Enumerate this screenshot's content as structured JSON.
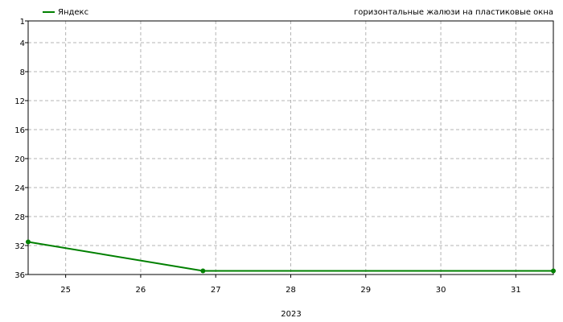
{
  "chart_data": {
    "type": "line",
    "title": "горизонтальные жалюзи на пластиковые окна",
    "xlabel": "2023",
    "ylabel": "",
    "x_ticks": [
      "25",
      "26",
      "27",
      "28",
      "29",
      "30",
      "31"
    ],
    "x_range": [
      "2023-08-24.5",
      "2023-08-31.5"
    ],
    "xlim": [
      24.5,
      31.5
    ],
    "y_ticks": [
      "1",
      "4",
      "8",
      "12",
      "16",
      "20",
      "24",
      "28",
      "32",
      "36"
    ],
    "ylim": [
      1,
      36
    ],
    "y_inverted": true,
    "grid": true,
    "legend": "top-left",
    "series": [
      {
        "name": "Яндекс",
        "color": "#008000",
        "x": [
          24.5,
          26.83,
          31.5
        ],
        "y": [
          31.5,
          35.5,
          35.5
        ]
      }
    ]
  }
}
